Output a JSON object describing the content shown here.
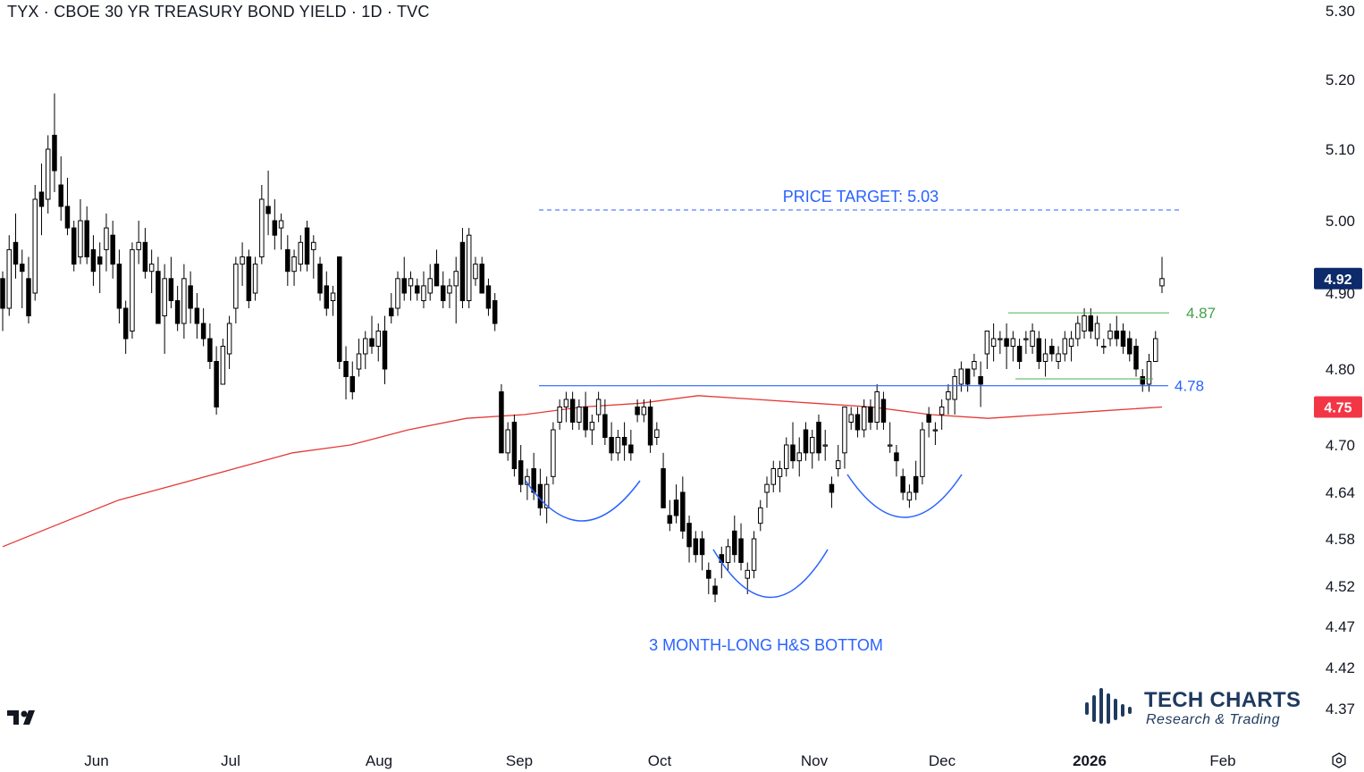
{
  "header": {
    "title": "TYX · CBOE 30 YR TREASURY BOND YIELD · 1D · TVC"
  },
  "chart_data": {
    "type": "candlestick",
    "symbol": "TYX",
    "interval": "1D",
    "title": "TYX · CBOE 30 YR TREASURY BOND YIELD · 1D · TVC",
    "y_ticks": [
      "5.30",
      "5.20",
      "5.10",
      "5.00",
      "4.90",
      "4.80",
      "4.70",
      "4.64",
      "4.58",
      "4.52",
      "4.47",
      "4.42",
      "4.37"
    ],
    "x_ticks": [
      "Jun",
      "Jul",
      "Aug",
      "Sep",
      "Oct",
      "Nov",
      "Dec",
      "2026",
      "Feb"
    ],
    "last_price": "4.92",
    "moving_average_value": "4.75",
    "annotations": {
      "price_target": "PRICE TARGET: 5.03",
      "pattern": "3 MONTH-LONG H&S BOTTOM",
      "neckline": "4.78",
      "range_top": "4.87"
    },
    "colors": {
      "ma_line": "#e53935",
      "neckline": "#2962ff",
      "range_line": "#4caf50",
      "annotation_blue": "#2962ff",
      "annotation_green": "#43a047",
      "last_price_badge": "#0d2b6b",
      "ma_badge": "#f23645",
      "candle_down": "#000000",
      "candle_up": "#ffffff"
    },
    "candles": [
      [
        4.92,
        4.93,
        4.85,
        4.88
      ],
      [
        4.88,
        4.98,
        4.87,
        4.96
      ],
      [
        4.97,
        5.01,
        4.92,
        4.94
      ],
      [
        4.94,
        4.96,
        4.88,
        4.93
      ],
      [
        4.92,
        4.95,
        4.86,
        4.87
      ],
      [
        4.9,
        5.05,
        4.89,
        5.03
      ],
      [
        5.04,
        5.08,
        4.98,
        5.02
      ],
      [
        5.03,
        5.12,
        5.01,
        5.1
      ],
      [
        5.12,
        5.18,
        5.04,
        5.07
      ],
      [
        5.05,
        5.09,
        5.0,
        5.02
      ],
      [
        5.02,
        5.06,
        4.98,
        4.99
      ],
      [
        4.99,
        5.0,
        4.93,
        4.94
      ],
      [
        4.95,
        5.03,
        4.94,
        5.0
      ],
      [
        5.0,
        5.02,
        4.94,
        4.95
      ],
      [
        4.96,
        4.98,
        4.91,
        4.93
      ],
      [
        4.95,
        4.97,
        4.9,
        4.94
      ],
      [
        4.96,
        5.01,
        4.93,
        4.99
      ],
      [
        4.98,
        5.0,
        4.92,
        4.94
      ],
      [
        4.94,
        4.96,
        4.86,
        4.88
      ],
      [
        4.88,
        4.89,
        4.82,
        4.84
      ],
      [
        4.85,
        4.97,
        4.84,
        4.96
      ],
      [
        4.96,
        5.0,
        4.94,
        4.97
      ],
      [
        4.97,
        4.99,
        4.92,
        4.93
      ],
      [
        4.93,
        4.96,
        4.9,
        4.94
      ],
      [
        4.93,
        4.95,
        4.86,
        4.86
      ],
      [
        4.87,
        4.94,
        4.82,
        4.92
      ],
      [
        4.92,
        4.95,
        4.88,
        4.89
      ],
      [
        4.89,
        4.91,
        4.85,
        4.86
      ],
      [
        4.86,
        4.94,
        4.84,
        4.92
      ],
      [
        4.91,
        4.93,
        4.86,
        4.88
      ],
      [
        4.88,
        4.9,
        4.84,
        4.86
      ],
      [
        4.86,
        4.88,
        4.83,
        4.84
      ],
      [
        4.84,
        4.86,
        4.8,
        4.81
      ],
      [
        4.81,
        4.83,
        4.74,
        4.75
      ],
      [
        4.78,
        4.84,
        4.78,
        4.83
      ],
      [
        4.82,
        4.87,
        4.8,
        4.86
      ],
      [
        4.88,
        4.95,
        4.86,
        4.94
      ],
      [
        4.94,
        4.97,
        4.91,
        4.95
      ],
      [
        4.95,
        4.96,
        4.88,
        4.89
      ],
      [
        4.9,
        4.95,
        4.89,
        4.94
      ],
      [
        4.95,
        5.05,
        4.94,
        5.03
      ],
      [
        5.02,
        5.07,
        4.98,
        5.01
      ],
      [
        5.0,
        5.03,
        4.96,
        4.98
      ],
      [
        4.99,
        5.01,
        4.96,
        5.0
      ],
      [
        4.96,
        4.98,
        4.91,
        4.93
      ],
      [
        4.93,
        4.96,
        4.91,
        4.95
      ],
      [
        4.94,
        4.98,
        4.93,
        4.97
      ],
      [
        4.99,
        5.0,
        4.93,
        4.94
      ],
      [
        4.96,
        4.98,
        4.92,
        4.97
      ],
      [
        4.94,
        4.95,
        4.89,
        4.9
      ],
      [
        4.91,
        4.93,
        4.87,
        4.88
      ],
      [
        4.89,
        4.91,
        4.87,
        4.9
      ],
      [
        4.95,
        4.95,
        4.8,
        4.81
      ],
      [
        4.81,
        4.83,
        4.76,
        4.79
      ],
      [
        4.79,
        4.81,
        4.76,
        4.77
      ],
      [
        4.8,
        4.84,
        4.79,
        4.82
      ],
      [
        4.82,
        4.85,
        4.8,
        4.84
      ],
      [
        4.84,
        4.87,
        4.82,
        4.83
      ],
      [
        4.83,
        4.86,
        4.81,
        4.85
      ],
      [
        4.85,
        4.87,
        4.78,
        4.8
      ],
      [
        4.88,
        4.9,
        4.86,
        4.87
      ],
      [
        4.88,
        4.93,
        4.87,
        4.92
      ],
      [
        4.92,
        4.95,
        4.89,
        4.9
      ],
      [
        4.91,
        4.93,
        4.89,
        4.92
      ],
      [
        4.91,
        4.92,
        4.89,
        4.9
      ],
      [
        4.89,
        4.93,
        4.88,
        4.91
      ],
      [
        4.9,
        4.94,
        4.89,
        4.92
      ],
      [
        4.94,
        4.96,
        4.91,
        4.91
      ],
      [
        4.91,
        4.93,
        4.88,
        4.89
      ],
      [
        4.9,
        4.92,
        4.88,
        4.91
      ],
      [
        4.91,
        4.95,
        4.86,
        4.93
      ],
      [
        4.97,
        4.99,
        4.88,
        4.89
      ],
      [
        4.89,
        4.99,
        4.88,
        4.98
      ],
      [
        4.92,
        4.95,
        4.91,
        4.94
      ],
      [
        4.94,
        4.95,
        4.9,
        4.9
      ],
      [
        4.91,
        4.92,
        4.87,
        4.88
      ],
      [
        4.89,
        4.9,
        4.85,
        4.86
      ],
      [
        4.77,
        4.78,
        4.69,
        4.69
      ],
      [
        4.69,
        4.73,
        4.68,
        4.72
      ],
      [
        4.73,
        4.74,
        4.66,
        4.67
      ],
      [
        4.68,
        4.7,
        4.64,
        4.65
      ],
      [
        4.65,
        4.67,
        4.63,
        4.66
      ],
      [
        4.67,
        4.69,
        4.63,
        4.64
      ],
      [
        4.65,
        4.67,
        4.61,
        4.62
      ],
      [
        4.62,
        4.66,
        4.6,
        4.65
      ],
      [
        4.66,
        4.73,
        4.65,
        4.72
      ],
      [
        4.73,
        4.76,
        4.72,
        4.75
      ],
      [
        4.75,
        4.77,
        4.73,
        4.76
      ],
      [
        4.76,
        4.77,
        4.72,
        4.73
      ],
      [
        4.73,
        4.76,
        4.72,
        4.75
      ],
      [
        4.75,
        4.77,
        4.71,
        4.72
      ],
      [
        4.72,
        4.74,
        4.7,
        4.73
      ],
      [
        4.74,
        4.77,
        4.73,
        4.76
      ],
      [
        4.74,
        4.76,
        4.7,
        4.71
      ],
      [
        4.71,
        4.73,
        4.68,
        4.69
      ],
      [
        4.69,
        4.72,
        4.68,
        4.71
      ],
      [
        4.71,
        4.73,
        4.68,
        4.7
      ],
      [
        4.7,
        4.72,
        4.68,
        4.69
      ],
      [
        4.75,
        4.76,
        4.73,
        4.74
      ],
      [
        4.74,
        4.76,
        4.73,
        4.75
      ],
      [
        4.75,
        4.76,
        4.69,
        4.7
      ],
      [
        4.71,
        4.73,
        4.7,
        4.72
      ],
      [
        4.67,
        4.69,
        4.62,
        4.62
      ],
      [
        4.61,
        4.63,
        4.59,
        4.6
      ],
      [
        4.63,
        4.65,
        4.6,
        4.61
      ],
      [
        4.64,
        4.66,
        4.58,
        4.59
      ],
      [
        4.6,
        4.61,
        4.55,
        4.57
      ],
      [
        4.58,
        4.59,
        4.55,
        4.56
      ],
      [
        4.58,
        4.59,
        4.54,
        4.56
      ],
      [
        4.54,
        4.55,
        4.51,
        4.53
      ],
      [
        4.52,
        4.53,
        4.5,
        4.51
      ],
      [
        4.56,
        4.57,
        4.53,
        4.55
      ],
      [
        4.55,
        4.58,
        4.54,
        4.57
      ],
      [
        4.59,
        4.61,
        4.55,
        4.56
      ],
      [
        4.58,
        4.6,
        4.54,
        4.55
      ],
      [
        4.53,
        4.55,
        4.51,
        4.54
      ],
      [
        4.54,
        4.59,
        4.53,
        4.58
      ],
      [
        4.6,
        4.63,
        4.59,
        4.62
      ],
      [
        4.64,
        4.66,
        4.62,
        4.65
      ],
      [
        4.65,
        4.68,
        4.64,
        4.67
      ],
      [
        4.66,
        4.68,
        4.64,
        4.67
      ],
      [
        4.67,
        4.71,
        4.66,
        4.7
      ],
      [
        4.7,
        4.73,
        4.67,
        4.68
      ],
      [
        4.68,
        4.71,
        4.66,
        4.69
      ],
      [
        4.72,
        4.73,
        4.68,
        4.69
      ],
      [
        4.69,
        4.72,
        4.67,
        4.71
      ],
      [
        4.73,
        4.74,
        4.68,
        4.69
      ],
      [
        4.7,
        4.72,
        4.68,
        4.7
      ],
      [
        4.65,
        4.66,
        4.62,
        4.64
      ],
      [
        4.67,
        4.7,
        4.66,
        4.68
      ],
      [
        4.69,
        4.75,
        4.67,
        4.75
      ],
      [
        4.73,
        4.75,
        4.72,
        4.74
      ],
      [
        4.74,
        4.75,
        4.71,
        4.72
      ],
      [
        4.72,
        4.76,
        4.71,
        4.75
      ],
      [
        4.75,
        4.76,
        4.72,
        4.73
      ],
      [
        4.73,
        4.78,
        4.72,
        4.77
      ],
      [
        4.76,
        4.77,
        4.72,
        4.73
      ],
      [
        4.7,
        4.73,
        4.69,
        4.7
      ],
      [
        4.69,
        4.7,
        4.66,
        4.68
      ],
      [
        4.66,
        4.67,
        4.63,
        4.64
      ],
      [
        4.63,
        4.65,
        4.62,
        4.64
      ],
      [
        4.66,
        4.68,
        4.63,
        4.64
      ],
      [
        4.66,
        4.73,
        4.65,
        4.72
      ],
      [
        4.74,
        4.75,
        4.71,
        4.73
      ],
      [
        4.72,
        4.73,
        4.7,
        4.72
      ],
      [
        4.74,
        4.76,
        4.72,
        4.75
      ],
      [
        4.76,
        4.78,
        4.74,
        4.77
      ],
      [
        4.76,
        4.8,
        4.74,
        4.79
      ],
      [
        4.78,
        4.81,
        4.77,
        4.8
      ],
      [
        4.8,
        4.8,
        4.77,
        4.78
      ],
      [
        4.8,
        4.82,
        4.79,
        4.81
      ],
      [
        4.79,
        4.81,
        4.75,
        4.78
      ],
      [
        4.82,
        4.85,
        4.8,
        4.85
      ],
      [
        4.83,
        4.86,
        4.81,
        4.84
      ],
      [
        4.84,
        4.85,
        4.82,
        4.84
      ],
      [
        4.84,
        4.86,
        4.8,
        4.83
      ],
      [
        4.83,
        4.85,
        4.81,
        4.84
      ],
      [
        4.83,
        4.84,
        4.8,
        4.81
      ],
      [
        4.84,
        4.85,
        4.82,
        4.84
      ],
      [
        4.83,
        4.86,
        4.82,
        4.85
      ],
      [
        4.84,
        4.85,
        4.8,
        4.81
      ],
      [
        4.81,
        4.84,
        4.79,
        4.82
      ],
      [
        4.83,
        4.84,
        4.81,
        4.82
      ],
      [
        4.81,
        4.83,
        4.8,
        4.82
      ],
      [
        4.82,
        4.85,
        4.81,
        4.84
      ],
      [
        4.83,
        4.85,
        4.81,
        4.84
      ],
      [
        4.84,
        4.87,
        4.83,
        4.86
      ],
      [
        4.85,
        4.88,
        4.84,
        4.87
      ],
      [
        4.87,
        4.88,
        4.84,
        4.85
      ],
      [
        4.84,
        4.87,
        4.83,
        4.86
      ],
      [
        4.83,
        4.84,
        4.82,
        4.83
      ],
      [
        4.84,
        4.86,
        4.83,
        4.85
      ],
      [
        4.85,
        4.87,
        4.83,
        4.84
      ],
      [
        4.85,
        4.86,
        4.82,
        4.83
      ],
      [
        4.84,
        4.85,
        4.81,
        4.82
      ],
      [
        4.83,
        4.84,
        4.79,
        4.8
      ],
      [
        4.79,
        4.8,
        4.77,
        4.78
      ],
      [
        4.78,
        4.82,
        4.77,
        4.81
      ],
      [
        4.81,
        4.85,
        4.81,
        4.84
      ],
      [
        4.91,
        4.95,
        4.9,
        4.92
      ]
    ],
    "ma200": [
      4.57,
      4.6,
      4.63,
      4.65,
      4.67,
      4.69,
      4.7,
      4.72,
      4.735,
      4.74,
      4.75,
      4.755,
      4.765,
      4.76,
      4.755,
      4.75,
      4.74,
      4.735,
      4.74,
      4.745,
      4.75
    ]
  },
  "branding": {
    "name": "TECH CHARTS",
    "tagline": "Research & Trading"
  },
  "icons": {
    "tradingview_logo": "tradingview-logo-icon",
    "settings": "settings-gear-icon"
  }
}
